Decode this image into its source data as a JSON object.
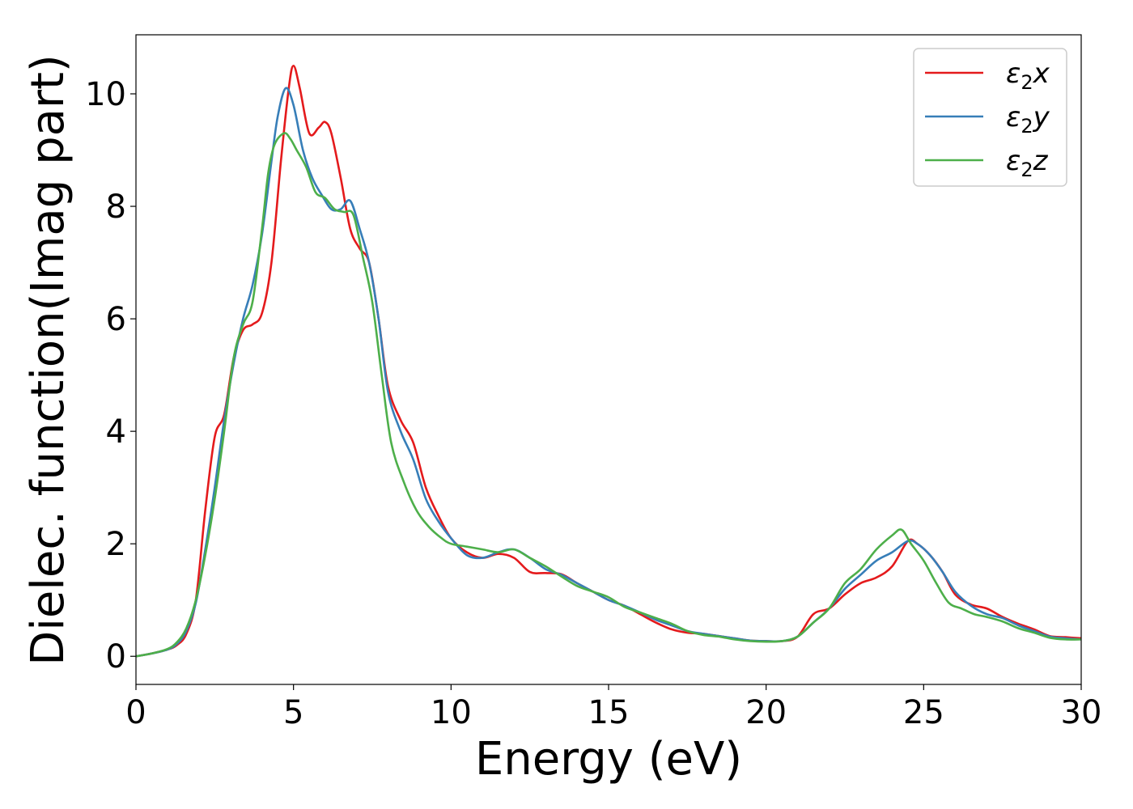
{
  "chart_data": {
    "type": "line",
    "title": "",
    "xlabel": "Energy (eV)",
    "ylabel": "Dielec. function(Imag part)",
    "xlim": [
      0,
      30
    ],
    "ylim": [
      -0.5,
      11.05
    ],
    "xticks": [
      0,
      5,
      10,
      15,
      20,
      25,
      30
    ],
    "yticks": [
      0,
      2,
      4,
      6,
      8,
      10
    ],
    "grid": false,
    "legend_position": "top-right",
    "series": [
      {
        "name": "ε2x",
        "label_main": "ε",
        "label_sub": "2",
        "label_suffix": "x",
        "color": "#e41a1c",
        "x": [
          0,
          0.5,
          1,
          1.3,
          1.6,
          1.9,
          2.2,
          2.5,
          2.8,
          3.1,
          3.4,
          3.7,
          4.0,
          4.3,
          4.6,
          4.85,
          5.0,
          5.2,
          5.5,
          5.8,
          6.0,
          6.2,
          6.5,
          6.8,
          7.1,
          7.4,
          7.7,
          8.0,
          8.4,
          8.8,
          9.2,
          9.6,
          10.0,
          10.5,
          11.0,
          11.5,
          12.0,
          12.5,
          13.0,
          13.5,
          14.0,
          14.5,
          15.0,
          15.5,
          16.0,
          16.5,
          17.0,
          17.5,
          18.0,
          18.5,
          19.0,
          19.5,
          20.0,
          20.5,
          21.0,
          21.5,
          22.0,
          22.5,
          23.0,
          23.5,
          24.0,
          24.5,
          24.8,
          25.2,
          25.6,
          26.0,
          26.5,
          27.0,
          27.5,
          28.0,
          28.5,
          29.0,
          29.5,
          30.0
        ],
        "y": [
          0,
          0.05,
          0.12,
          0.2,
          0.4,
          1.0,
          2.6,
          3.9,
          4.3,
          5.3,
          5.8,
          5.9,
          6.1,
          7.0,
          8.8,
          10.1,
          10.5,
          10.1,
          9.3,
          9.4,
          9.5,
          9.3,
          8.5,
          7.6,
          7.25,
          7.0,
          6.0,
          4.8,
          4.2,
          3.8,
          3.0,
          2.5,
          2.1,
          1.85,
          1.75,
          1.82,
          1.75,
          1.5,
          1.48,
          1.46,
          1.3,
          1.15,
          1.0,
          0.9,
          0.75,
          0.6,
          0.48,
          0.42,
          0.4,
          0.36,
          0.32,
          0.28,
          0.27,
          0.27,
          0.35,
          0.75,
          0.85,
          1.1,
          1.3,
          1.4,
          1.6,
          2.05,
          2.0,
          1.8,
          1.5,
          1.1,
          0.92,
          0.85,
          0.7,
          0.58,
          0.48,
          0.36,
          0.34,
          0.32
        ]
      },
      {
        "name": "ε2y",
        "label_main": "ε",
        "label_sub": "2",
        "label_suffix": "y",
        "color": "#377eb8",
        "x": [
          0,
          0.5,
          1,
          1.3,
          1.6,
          1.9,
          2.2,
          2.5,
          2.8,
          3.1,
          3.4,
          3.7,
          4.0,
          4.3,
          4.5,
          4.75,
          5.0,
          5.3,
          5.6,
          5.9,
          6.2,
          6.5,
          6.8,
          7.1,
          7.4,
          7.7,
          8.0,
          8.4,
          8.8,
          9.2,
          9.6,
          10.0,
          10.5,
          11.0,
          11.5,
          12.0,
          12.5,
          13.0,
          13.5,
          14.0,
          14.5,
          15.0,
          15.5,
          16.0,
          16.5,
          17.0,
          17.5,
          18.0,
          18.5,
          19.0,
          19.5,
          20.0,
          20.5,
          21.0,
          21.5,
          22.0,
          22.5,
          23.0,
          23.5,
          24.0,
          24.5,
          24.8,
          25.2,
          25.6,
          26.0,
          26.5,
          27.0,
          27.5,
          28.0,
          28.5,
          29.0,
          29.5,
          30.0
        ],
        "y": [
          0,
          0.05,
          0.12,
          0.22,
          0.45,
          0.95,
          1.9,
          3.0,
          4.2,
          5.2,
          6.0,
          6.6,
          7.5,
          8.8,
          9.6,
          10.1,
          9.8,
          9.0,
          8.5,
          8.2,
          7.95,
          7.95,
          8.1,
          7.6,
          7.0,
          6.0,
          4.7,
          4.0,
          3.5,
          2.8,
          2.4,
          2.1,
          1.8,
          1.75,
          1.85,
          1.9,
          1.75,
          1.55,
          1.45,
          1.3,
          1.15,
          1.0,
          0.9,
          0.78,
          0.65,
          0.55,
          0.45,
          0.4,
          0.36,
          0.32,
          0.28,
          0.27,
          0.27,
          0.35,
          0.6,
          0.85,
          1.2,
          1.45,
          1.7,
          1.85,
          2.05,
          2.0,
          1.8,
          1.5,
          1.15,
          0.9,
          0.75,
          0.68,
          0.55,
          0.45,
          0.35,
          0.32,
          0.3
        ]
      },
      {
        "name": "ε2z",
        "label_main": "ε",
        "label_sub": "2",
        "label_suffix": "z",
        "color": "#4daf4a",
        "x": [
          0,
          0.5,
          1,
          1.3,
          1.6,
          1.9,
          2.2,
          2.5,
          2.8,
          3.1,
          3.4,
          3.7,
          4.0,
          4.2,
          4.4,
          4.7,
          4.9,
          5.1,
          5.4,
          5.7,
          6.0,
          6.3,
          6.6,
          6.9,
          7.2,
          7.5,
          7.8,
          8.1,
          8.5,
          8.9,
          9.3,
          9.7,
          10.0,
          10.5,
          11.0,
          11.5,
          12.0,
          12.5,
          13.0,
          13.5,
          14.0,
          14.5,
          15.0,
          15.5,
          16.0,
          16.5,
          17.0,
          17.5,
          18.0,
          18.5,
          19.0,
          19.5,
          20.0,
          20.5,
          21.0,
          21.5,
          22.0,
          22.5,
          23.0,
          23.5,
          24.0,
          24.3,
          24.6,
          25.0,
          25.4,
          25.8,
          26.2,
          26.6,
          27.0,
          27.5,
          28.0,
          28.5,
          29.0,
          29.5,
          30.0
        ],
        "y": [
          0,
          0.05,
          0.13,
          0.25,
          0.5,
          1.0,
          1.8,
          2.8,
          4.0,
          5.3,
          5.9,
          6.3,
          7.6,
          8.6,
          9.1,
          9.3,
          9.2,
          9.0,
          8.7,
          8.25,
          8.15,
          7.95,
          7.9,
          7.85,
          7.1,
          6.3,
          5.0,
          3.8,
          3.1,
          2.6,
          2.3,
          2.1,
          2.0,
          1.95,
          1.9,
          1.85,
          1.9,
          1.75,
          1.6,
          1.42,
          1.25,
          1.15,
          1.05,
          0.88,
          0.78,
          0.68,
          0.58,
          0.45,
          0.38,
          0.35,
          0.3,
          0.27,
          0.26,
          0.27,
          0.35,
          0.6,
          0.85,
          1.3,
          1.55,
          1.9,
          2.15,
          2.25,
          2.0,
          1.7,
          1.3,
          0.95,
          0.85,
          0.75,
          0.7,
          0.62,
          0.5,
          0.42,
          0.33,
          0.3,
          0.3
        ]
      }
    ]
  }
}
